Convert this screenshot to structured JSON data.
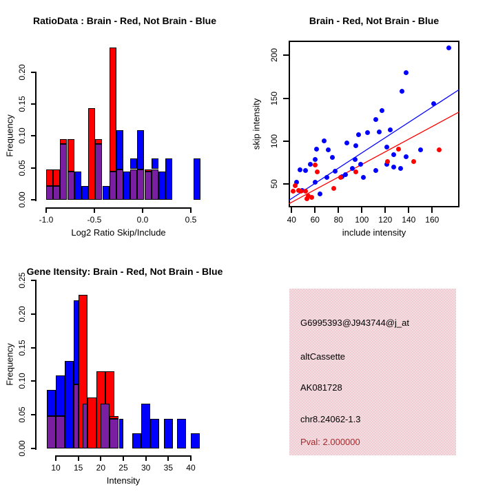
{
  "colors": {
    "red": "#ff0000",
    "blue": "#0000ff",
    "purple": "#7a1fa2",
    "dark_red": "#a52a2a",
    "panel_pink": "#f5c8d2",
    "axis": "#000000"
  },
  "chart_data": [
    {
      "id": "ratio_hist",
      "type": "bar",
      "title": "RatioData : Brain - Red, Not Brain - Blue",
      "xlabel": "Log2 Ratio Skip/Include",
      "ylabel": "Frequency",
      "xlim": [
        -1.05,
        0.65
      ],
      "ylim": [
        0,
        0.24
      ],
      "grid": false,
      "xticks": [
        -1.0,
        -0.5,
        0.0,
        0.5
      ],
      "xtick_labels": [
        "-1.0",
        "-0.5",
        "0.0",
        "0.5"
      ],
      "yticks": [
        0,
        0.05,
        0.1,
        0.15,
        0.2
      ],
      "ytick_labels": [
        "0.00",
        "0.05",
        "0.10",
        "0.15",
        "0.20"
      ],
      "series_note": "red = Brain, blue = Not Brain, purple = overlap of both histograms",
      "segments": [
        [
          -1.0,
          -0.927,
          0,
          0.022,
          "purple"
        ],
        [
          -1.0,
          -0.927,
          0.022,
          0.048,
          "red"
        ],
        [
          -0.927,
          -0.855,
          0,
          0.022,
          "purple"
        ],
        [
          -0.927,
          -0.855,
          0.022,
          0.048,
          "red"
        ],
        [
          -0.855,
          -0.782,
          0,
          0.087,
          "purple"
        ],
        [
          -0.855,
          -0.782,
          0.087,
          0.095,
          "red"
        ],
        [
          -0.782,
          -0.709,
          0,
          0.044,
          "purple"
        ],
        [
          -0.782,
          -0.709,
          0.044,
          0.095,
          "red"
        ],
        [
          -0.709,
          -0.636,
          0,
          0.044,
          "blue"
        ],
        [
          -0.636,
          -0.564,
          0,
          0.022,
          "blue"
        ],
        [
          -0.564,
          -0.491,
          0,
          0.144,
          "red"
        ],
        [
          -0.491,
          -0.418,
          0,
          0.087,
          "purple"
        ],
        [
          -0.491,
          -0.418,
          0.087,
          0.095,
          "red"
        ],
        [
          -0.418,
          -0.345,
          0,
          0.022,
          "blue"
        ],
        [
          -0.345,
          -0.273,
          0,
          0.044,
          "purple"
        ],
        [
          -0.345,
          -0.273,
          0.044,
          0.238,
          "red"
        ],
        [
          -0.273,
          -0.2,
          0,
          0.048,
          "purple"
        ],
        [
          -0.273,
          -0.2,
          0.048,
          0.109,
          "blue"
        ],
        [
          -0.2,
          -0.127,
          0,
          0.044,
          "blue"
        ],
        [
          -0.127,
          -0.055,
          0,
          0.048,
          "purple"
        ],
        [
          -0.127,
          -0.055,
          0.048,
          0.065,
          "blue"
        ],
        [
          -0.055,
          0.018,
          0,
          0.048,
          "purple"
        ],
        [
          -0.055,
          0.018,
          0.048,
          0.109,
          "blue"
        ],
        [
          0.018,
          0.091,
          0,
          0.044,
          "purple"
        ],
        [
          0.018,
          0.091,
          0.044,
          0.048,
          "red"
        ],
        [
          0.091,
          0.164,
          0,
          0.048,
          "purple"
        ],
        [
          0.091,
          0.164,
          0.048,
          0.065,
          "blue"
        ],
        [
          0.164,
          0.236,
          0,
          0.044,
          "blue"
        ],
        [
          0.236,
          0.309,
          0,
          0.065,
          "blue"
        ],
        [
          0.527,
          0.6,
          0,
          0.065,
          "blue"
        ]
      ]
    },
    {
      "id": "scatter",
      "type": "scatter",
      "title": "Brain - Red, Not Brain - Blue",
      "xlabel": "include intensity",
      "ylabel": "skip intensity",
      "xlim": [
        38,
        183
      ],
      "ylim": [
        23,
        217
      ],
      "grid": false,
      "xticks": [
        40,
        60,
        80,
        100,
        120,
        140,
        160
      ],
      "xtick_labels": [
        "40",
        "60",
        "80",
        "100",
        "120",
        "140",
        "160"
      ],
      "yticks": [
        50,
        100,
        150,
        200
      ],
      "ytick_labels": [
        "50",
        "100",
        "150",
        "200"
      ],
      "blue_points": [
        [
          174,
          209
        ],
        [
          138,
          180
        ],
        [
          134,
          158
        ],
        [
          161,
          144
        ],
        [
          117,
          136
        ],
        [
          112,
          125
        ],
        [
          124,
          113
        ],
        [
          115,
          111
        ],
        [
          105,
          110
        ],
        [
          97,
          108
        ],
        [
          121,
          93
        ],
        [
          150,
          90
        ],
        [
          127,
          84
        ],
        [
          138,
          82
        ],
        [
          121,
          73
        ],
        [
          127,
          70
        ],
        [
          133,
          68
        ],
        [
          112,
          66
        ],
        [
          99,
          73
        ],
        [
          94,
          79
        ],
        [
          95,
          95
        ],
        [
          87,
          98
        ],
        [
          68,
          100
        ],
        [
          71,
          90
        ],
        [
          61,
          91
        ],
        [
          75,
          81
        ],
        [
          86,
          61
        ],
        [
          101,
          58
        ],
        [
          92,
          68
        ],
        [
          47,
          67
        ],
        [
          52,
          66
        ],
        [
          56,
          73
        ],
        [
          44,
          52
        ],
        [
          49,
          43
        ],
        [
          60,
          52
        ],
        [
          64,
          39
        ],
        [
          70,
          58
        ],
        [
          77,
          65
        ],
        [
          83,
          59
        ],
        [
          60,
          79
        ]
      ],
      "red_points": [
        [
          43,
          48
        ],
        [
          41,
          42
        ],
        [
          46,
          43
        ],
        [
          48,
          42
        ],
        [
          52,
          42
        ],
        [
          53,
          33
        ],
        [
          54,
          36
        ],
        [
          57,
          35
        ],
        [
          60,
          72
        ],
        [
          62,
          64
        ],
        [
          76,
          45
        ],
        [
          82,
          58
        ],
        [
          95,
          64
        ],
        [
          131,
          91
        ],
        [
          122,
          76
        ],
        [
          144,
          76
        ],
        [
          166,
          90
        ]
      ],
      "blue_trend_line": [
        [
          37.5,
          31
        ],
        [
          183,
          160
        ]
      ],
      "red_trend_line": [
        [
          37.5,
          27
        ],
        [
          183,
          134
        ]
      ]
    },
    {
      "id": "intensity_hist",
      "type": "bar",
      "title": "Gene Itensity: Brain - Red, Not Brain - Blue",
      "xlabel": "Intensity",
      "ylabel": "Frequency",
      "xlim": [
        7,
        43.5
      ],
      "ylim": [
        0,
        0.25
      ],
      "grid": false,
      "xticks": [
        10,
        15,
        20,
        25,
        30,
        35,
        40
      ],
      "xtick_labels": [
        "10",
        "15",
        "20",
        "25",
        "30",
        "35",
        "40"
      ],
      "yticks": [
        0,
        0.05,
        0.1,
        0.15,
        0.2,
        0.25
      ],
      "ytick_labels": [
        "0.00",
        "0.05",
        "0.10",
        "0.15",
        "0.20",
        "0.25"
      ],
      "series_note": "red = Brain, blue = Not Brain, purple = overlap of both histograms",
      "segments": [
        [
          8,
          10,
          0,
          0.048,
          "purple"
        ],
        [
          8,
          10,
          0.048,
          0.087,
          "blue"
        ],
        [
          10,
          12,
          0,
          0.048,
          "purple"
        ],
        [
          10,
          12,
          0.048,
          0.109,
          "blue"
        ],
        [
          12,
          14,
          0,
          0.13,
          "blue"
        ],
        [
          14,
          15,
          0,
          0.095,
          "purple"
        ],
        [
          14,
          15,
          0.095,
          0.22,
          "blue"
        ],
        [
          15,
          17,
          0,
          0.229,
          "red"
        ],
        [
          16,
          17,
          0,
          0.066,
          "purple"
        ],
        [
          17,
          19,
          0,
          0.076,
          "red"
        ],
        [
          19,
          21,
          0,
          0.115,
          "red"
        ],
        [
          21,
          23,
          0,
          0.115,
          "red"
        ],
        [
          20,
          22,
          0,
          0.066,
          "purple"
        ],
        [
          22,
          24,
          0,
          0.044,
          "purple"
        ],
        [
          22,
          24,
          0.044,
          0.048,
          "red"
        ],
        [
          24,
          25,
          0,
          0.044,
          "blue"
        ],
        [
          27,
          29,
          0,
          0.022,
          "blue"
        ],
        [
          29,
          31,
          0,
          0.066,
          "blue"
        ],
        [
          31,
          33,
          0,
          0.044,
          "blue"
        ],
        [
          34,
          36,
          0,
          0.044,
          "blue"
        ],
        [
          37,
          39,
          0,
          0.044,
          "blue"
        ],
        [
          40,
          42,
          0,
          0.022,
          "blue"
        ]
      ]
    },
    {
      "id": "info_panel",
      "type": "text",
      "lines": {
        "probe_id": "G6995393@J943744@j_at",
        "event_type": "altCassette",
        "accession": "AK081728",
        "locus": "chr8.24062-1.3",
        "pval": "Pval: 2.000000"
      }
    }
  ]
}
